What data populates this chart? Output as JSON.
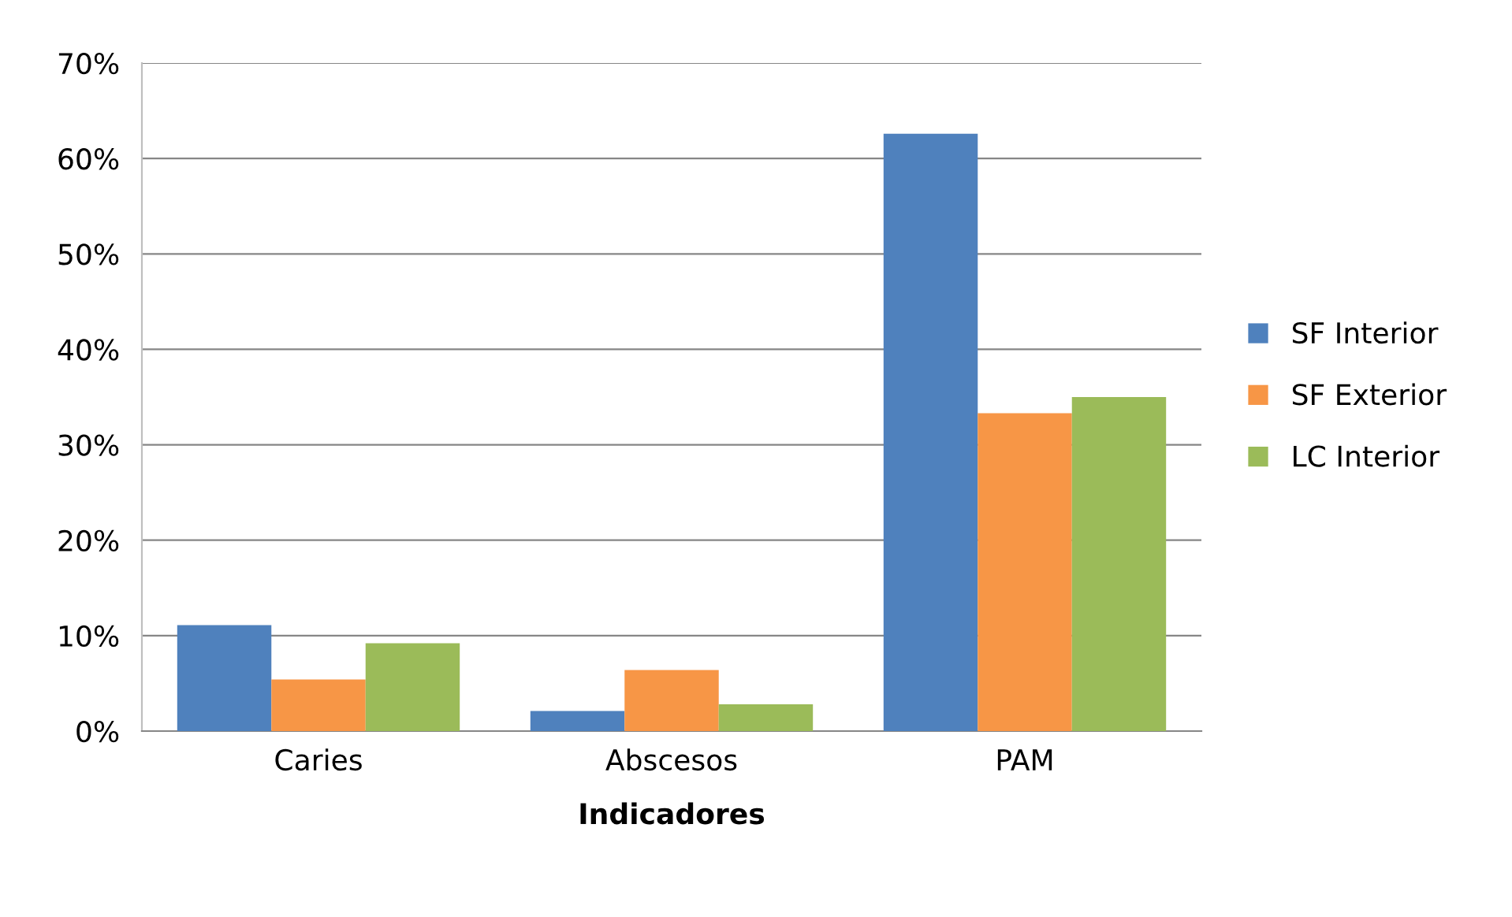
{
  "chart_data": {
    "type": "bar",
    "xlabel": "Indicadores",
    "categories": [
      "Caries",
      "Abscesos",
      "PAM"
    ],
    "series": [
      {
        "name": "SF Interior",
        "color": "#4f81bd",
        "values": [
          11.1,
          2.1,
          62.6
        ]
      },
      {
        "name": "SF Exterior",
        "color": "#f79646",
        "values": [
          5.4,
          6.4,
          33.3
        ]
      },
      {
        "name": "LC Interior",
        "color": "#9bbb59",
        "values": [
          9.2,
          2.8,
          35.0
        ]
      }
    ],
    "ylim": [
      0,
      70
    ],
    "yticks": [
      {
        "value": 0,
        "label": "0%"
      },
      {
        "value": 10,
        "label": "10%"
      },
      {
        "value": 20,
        "label": "20%"
      },
      {
        "value": 30,
        "label": "30%"
      },
      {
        "value": 40,
        "label": "40%"
      },
      {
        "value": 50,
        "label": "50%"
      },
      {
        "value": 60,
        "label": "60%"
      },
      {
        "value": 70,
        "label": "70%"
      }
    ],
    "grid": "y",
    "legend": "right"
  }
}
